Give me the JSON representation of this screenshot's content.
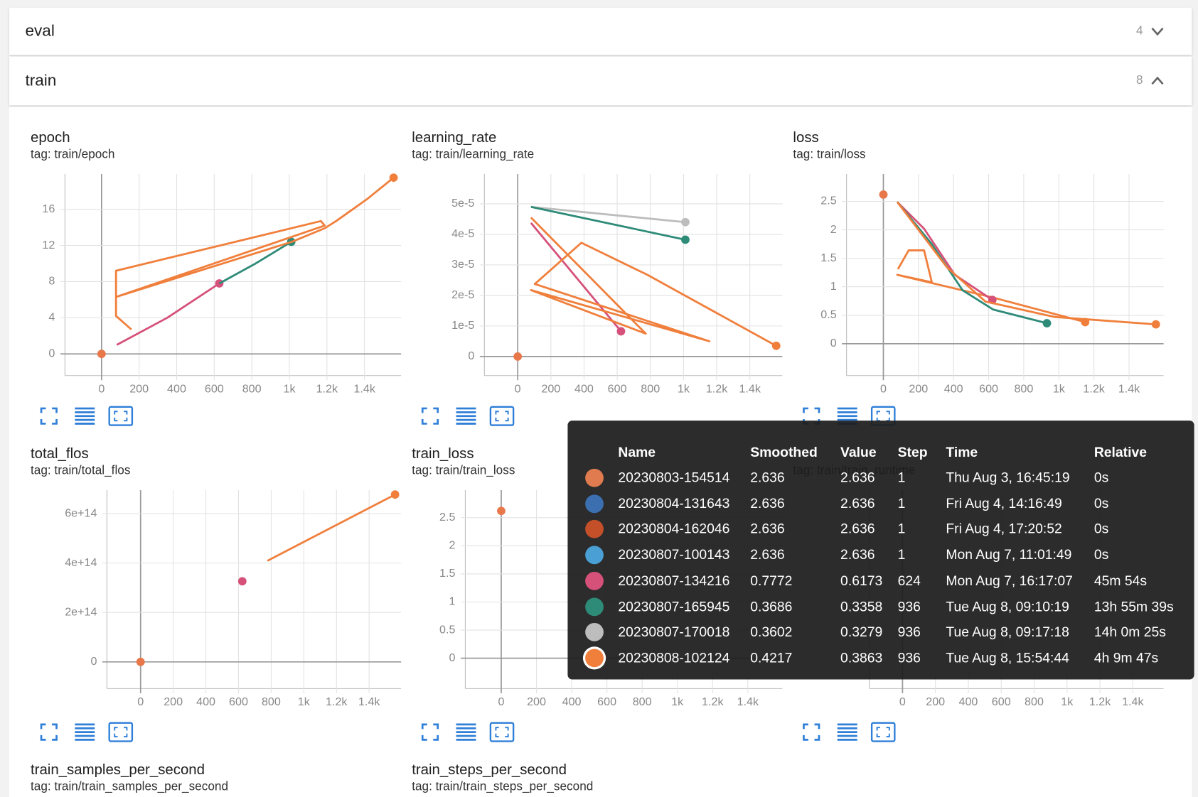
{
  "sections": [
    {
      "title": "eval",
      "count": 4
    },
    {
      "title": "train",
      "count": 8
    }
  ],
  "panels": [
    {
      "title": "epoch",
      "tag": "tag: train/epoch",
      "chart": {
        "type": "line",
        "xlim": [
          -195,
          1595
        ],
        "xticks": [
          0,
          200,
          400,
          600,
          800,
          {
            "value": 1000,
            "label": "1k"
          },
          {
            "value": 1200,
            "label": "1.2k"
          },
          {
            "value": 1400,
            "label": "1.4k"
          }
        ],
        "ylim": [
          -2.4,
          19.9
        ],
        "yticks": [
          0,
          4,
          8,
          12,
          16
        ],
        "grid": true,
        "series": [
          {
            "color": "#e8774a",
            "x": [
              0
            ],
            "y": [
              0
            ]
          },
          {
            "color": "#d6517a",
            "x": [
              81,
              350,
              627
            ],
            "y": [
              1.0,
              4.0,
              7.8
            ]
          },
          {
            "color": "#2e8b78",
            "x": [
              627,
              820,
              1010
            ],
            "y": [
              7.8,
              10.0,
              12.4
            ]
          },
          {
            "color": "#f07f3c",
            "x": [
              159,
              77,
              77,
              1168,
              1188,
              77,
              1013,
              1188,
              1249,
              1412,
              1555
            ],
            "y": [
              2.7,
              4.2,
              9.2,
              14.7,
              14.2,
              6.3,
              12.4,
              13.9,
              14.7,
              17.1,
              19.5
            ]
          }
        ]
      }
    },
    {
      "title": "learning_rate",
      "tag": "tag: train/learning_rate",
      "chart": {
        "type": "line",
        "xlim": [
          -201,
          1596
        ],
        "xticks": [
          0,
          200,
          400,
          600,
          800,
          {
            "value": 1000,
            "label": "1k"
          },
          {
            "value": 1200,
            "label": "1.2k"
          },
          {
            "value": 1400,
            "label": "1.4k"
          }
        ],
        "ylim": [
          -6.25e-06,
          5.975e-05
        ],
        "yticks": [
          0,
          {
            "value": 1e-05,
            "label": "1e-5"
          },
          {
            "value": 2e-05,
            "label": "2e-5"
          },
          {
            "value": 3e-05,
            "label": "3e-5"
          },
          {
            "value": 4e-05,
            "label": "4e-5"
          },
          {
            "value": 5e-05,
            "label": "5e-5"
          }
        ],
        "grid": true,
        "series": [
          {
            "color": "#e8774a",
            "x": [
              0
            ],
            "y": [
              0
            ]
          },
          {
            "color": "#bdbdbd",
            "x": [
              80,
              1011
            ],
            "y": [
              4.9e-05,
              4.4e-05
            ]
          },
          {
            "color": "#2e8b78",
            "x": [
              80,
              1011
            ],
            "y": [
              4.9e-05,
              3.825e-05
            ]
          },
          {
            "color": "#d6517a",
            "x": [
              80,
              623
            ],
            "y": [
              4.375e-05,
              8.25e-06
            ]
          },
          {
            "color": "#f07f3c",
            "x": [
              80,
              772,
              80,
              1156,
              103,
              384,
              782,
              1559
            ],
            "y": [
              4.55e-05,
              7.5e-06,
              2.175e-05,
              5e-06,
              2.375e-05,
              3.725e-05,
              2.675e-05,
              3.5e-06
            ]
          }
        ]
      }
    },
    {
      "title": "loss",
      "tag": "tag: train/loss",
      "chart": {
        "type": "line",
        "xlim": [
          -210,
          1597
        ],
        "xticks": [
          0,
          200,
          400,
          600,
          800,
          {
            "value": 1000,
            "label": "1k"
          },
          {
            "value": 1200,
            "label": "1.2k"
          },
          {
            "value": 1400,
            "label": "1.4k"
          }
        ],
        "ylim": [
          -0.56,
          2.98
        ],
        "yticks": [
          0,
          0.5,
          1,
          1.5,
          2,
          2.5
        ],
        "grid": true,
        "series": [
          {
            "color": "#e8774a",
            "x": [
              0
            ],
            "y": [
              2.62
            ]
          },
          {
            "color": "#f07f3c",
            "x": [
              83,
              144,
              232,
              276,
              79,
              626,
              1150
            ],
            "y": [
              1.31,
              1.64,
              1.64,
              1.08,
              1.21,
              0.81,
              0.38
            ]
          },
          {
            "color": "#d6517a",
            "x": [
              79,
              232,
              407,
              621
            ],
            "y": [
              2.49,
              2.02,
              1.21,
              0.77
            ]
          },
          {
            "color": "#2e8b78",
            "x": [
              79,
              276,
              451,
              626,
              932
            ],
            "y": [
              2.49,
              1.75,
              0.94,
              0.6,
              0.36
            ]
          },
          {
            "color": "#f07f3c",
            "x": [
              79,
              363,
              582,
              976,
              1553
            ],
            "y": [
              2.49,
              1.34,
              0.74,
              0.47,
              0.34
            ]
          }
        ]
      }
    },
    {
      "title": "total_flos",
      "tag": "tag: train/total_flos",
      "chart": {
        "type": "line",
        "xlim": [
          -206,
          1596
        ],
        "xticks": [
          0,
          200,
          400,
          600,
          800,
          {
            "value": 1000,
            "label": "1k"
          },
          {
            "value": 1200,
            "label": "1.2k"
          },
          {
            "value": 1400,
            "label": "1.4k"
          }
        ],
        "ylim": [
          -108000000000000.0,
          695000000000000.0
        ],
        "yticks": [
          0,
          {
            "value": 200000000000000.0,
            "label": "2e+14"
          },
          {
            "value": 400000000000000.0,
            "label": "4e+14"
          },
          {
            "value": 600000000000000.0,
            "label": "6e+14"
          }
        ],
        "grid": true,
        "series": [
          {
            "color": "#e8774a",
            "x": [
              0
            ],
            "y": [
              0
            ]
          },
          {
            "color": "#d6517a",
            "x": [
              623
            ],
            "y": [
              326000000000000.0
            ]
          },
          {
            "color": "#f07f3c",
            "x": [
              777,
              1559
            ],
            "y": [
              409000000000000.0,
              677000000000000.0
            ]
          }
        ]
      }
    },
    {
      "title": "train_loss",
      "tag": "tag: train/train_loss",
      "chart": {
        "type": "line",
        "xlim": [
          -204,
          1596
        ],
        "xticks": [
          0,
          200,
          400,
          600,
          800,
          {
            "value": 1000,
            "label": "1k"
          },
          {
            "value": 1200,
            "label": "1.2k"
          },
          {
            "value": 1400,
            "label": "1.4k"
          }
        ],
        "ylim": [
          -0.54,
          2.99
        ],
        "yticks": [
          0,
          0.5,
          1,
          1.5,
          2,
          2.5
        ],
        "grid": true,
        "series": [
          {
            "color": "#e8774a",
            "x": [
              0
            ],
            "y": [
              2.62
            ]
          }
        ]
      }
    },
    {
      "tag": "tag: train/train_runtime",
      "chart": {
        "type": "line",
        "xlim": [
          -201,
          1587
        ],
        "xticks": [
          0,
          200,
          400,
          600,
          800,
          {
            "value": 1000,
            "label": "1k"
          },
          {
            "value": 1200,
            "label": "1.2k"
          },
          {
            "value": 1400,
            "label": "1.4k"
          }
        ],
        "grid": true,
        "series": []
      }
    },
    {
      "title": "train_samples_per_second",
      "tag": "tag: train/train_samples_per_second"
    },
    {
      "title": "train_steps_per_second",
      "tag": "tag: train/train_steps_per_second"
    }
  ],
  "tooltip": {
    "headers": [
      "Name",
      "Smoothed",
      "Value",
      "Step",
      "Time",
      "Relative"
    ],
    "rows": [
      {
        "color": "#e07b4f",
        "name": "20230803-154514",
        "smoothed": 2.636,
        "value": 2.636,
        "step": 1,
        "time": "Thu Aug 3, 16:45:19",
        "relative": "0s"
      },
      {
        "color": "#3b6fb0",
        "name": "20230804-131643",
        "smoothed": 2.636,
        "value": 2.636,
        "step": 1,
        "time": "Fri Aug 4, 14:16:49",
        "relative": "0s"
      },
      {
        "color": "#c4502a",
        "name": "20230804-162046",
        "smoothed": 2.636,
        "value": 2.636,
        "step": 1,
        "time": "Fri Aug 4, 17:20:52",
        "relative": "0s"
      },
      {
        "color": "#4a9fd4",
        "name": "20230807-100143",
        "smoothed": 2.636,
        "value": 2.636,
        "step": 1,
        "time": "Mon Aug 7, 11:01:49",
        "relative": "0s"
      },
      {
        "color": "#d6517a",
        "name": "20230807-134216",
        "smoothed": 0.7772,
        "value": 0.6173,
        "step": 624,
        "time": "Mon Aug 7, 16:17:07",
        "relative": "45m 54s"
      },
      {
        "color": "#2e8b78",
        "name": "20230807-165945",
        "smoothed": 0.3686,
        "value": 0.3358,
        "step": 936,
        "time": "Tue Aug 8, 09:10:19",
        "relative": "13h 55m 39s"
      },
      {
        "color": "#bdbdbd",
        "name": "20230807-170018",
        "smoothed": 0.3602,
        "value": 0.3279,
        "step": 936,
        "time": "Tue Aug 8, 09:17:18",
        "relative": "14h 0m 25s"
      },
      {
        "color": "#f07f3c",
        "name": "20230808-102124",
        "smoothed": 0.4217,
        "value": 0.3863,
        "step": 936,
        "time": "Tue Aug 8, 15:54:44",
        "relative": "4h 9m 47s"
      }
    ]
  }
}
